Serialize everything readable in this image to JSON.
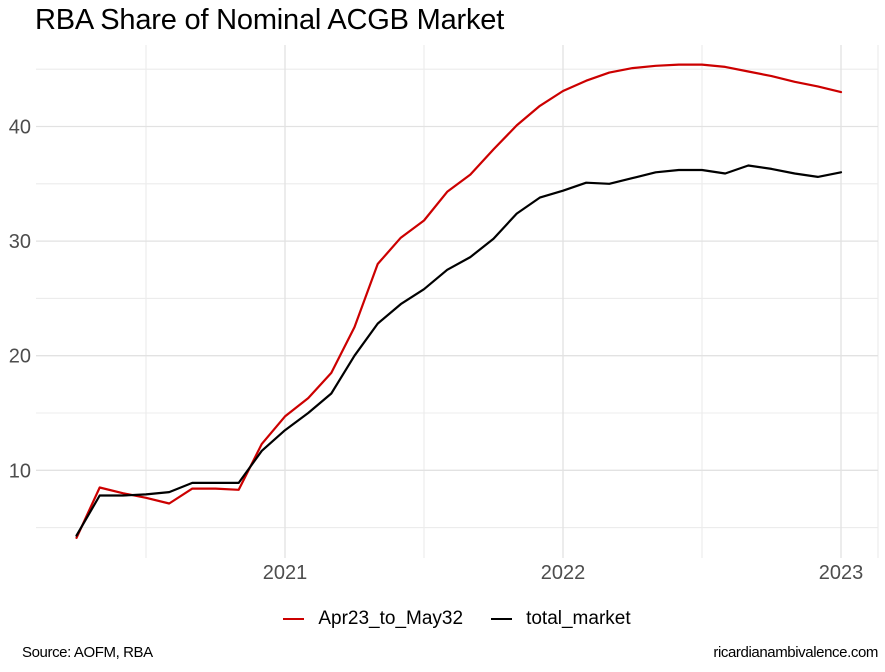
{
  "title": "RBA Share of Nominal ACGB Market",
  "footer": {
    "source": "Source: AOFM, RBA",
    "site": "ricardianambivalence.com"
  },
  "colors": {
    "series_red": "#CC0000",
    "series_black": "#000000",
    "axis_text": "#4D4D4D",
    "grid_major": "#E2E2E2",
    "grid_minor": "#ECECEC"
  },
  "chart_data": {
    "type": "line",
    "title": "RBA Share of Nominal ACGB Market",
    "xlabel": "",
    "ylabel": "",
    "grid": true,
    "legend_position": "bottom",
    "x": [
      "2020-03",
      "2020-04",
      "2020-05",
      "2020-06",
      "2020-07",
      "2020-08",
      "2020-09",
      "2020-10",
      "2020-11",
      "2020-12",
      "2021-01",
      "2021-02",
      "2021-03",
      "2021-04",
      "2021-05",
      "2021-06",
      "2021-07",
      "2021-08",
      "2021-09",
      "2021-10",
      "2021-11",
      "2021-12",
      "2022-01",
      "2022-02",
      "2022-03",
      "2022-04",
      "2022-05",
      "2022-06",
      "2022-07",
      "2022-08",
      "2022-09",
      "2022-10",
      "2022-11",
      "2022-12"
    ],
    "series": [
      {
        "name": "Apr23_to_May32",
        "color": "#CC0000",
        "values": [
          4.1,
          8.5,
          8.0,
          7.6,
          7.1,
          8.4,
          8.4,
          8.3,
          12.3,
          14.7,
          16.3,
          18.5,
          22.5,
          28.0,
          30.3,
          31.8,
          34.3,
          35.8,
          38.0,
          40.1,
          41.8,
          43.1,
          44.0,
          44.7,
          45.1,
          45.3,
          45.4,
          45.4,
          45.2,
          44.8,
          44.4,
          43.9,
          43.5,
          43.0
        ]
      },
      {
        "name": "total_market",
        "color": "#000000",
        "values": [
          4.3,
          7.8,
          7.8,
          7.9,
          8.1,
          8.9,
          8.9,
          8.9,
          11.7,
          13.5,
          15.0,
          16.7,
          20.0,
          22.8,
          24.5,
          25.8,
          27.5,
          28.6,
          30.2,
          32.4,
          33.8,
          34.4,
          35.1,
          35.0,
          35.5,
          36.0,
          36.2,
          36.2,
          35.9,
          36.6,
          36.3,
          35.9,
          35.6,
          36.0
        ]
      }
    ],
    "x_axis": {
      "tick_labels": [
        "2021",
        "2022",
        "2023"
      ],
      "tick_years": [
        2021,
        2022,
        2023
      ],
      "minor_years": [
        2020.5,
        2021.5,
        2022.5
      ],
      "range_years": [
        2020.17,
        2023.13
      ]
    },
    "y_axis": {
      "ticks": [
        10,
        20,
        30,
        40
      ],
      "minor_ticks": [
        5,
        15,
        25,
        35,
        45
      ],
      "range": [
        2.3,
        47.2
      ]
    }
  }
}
